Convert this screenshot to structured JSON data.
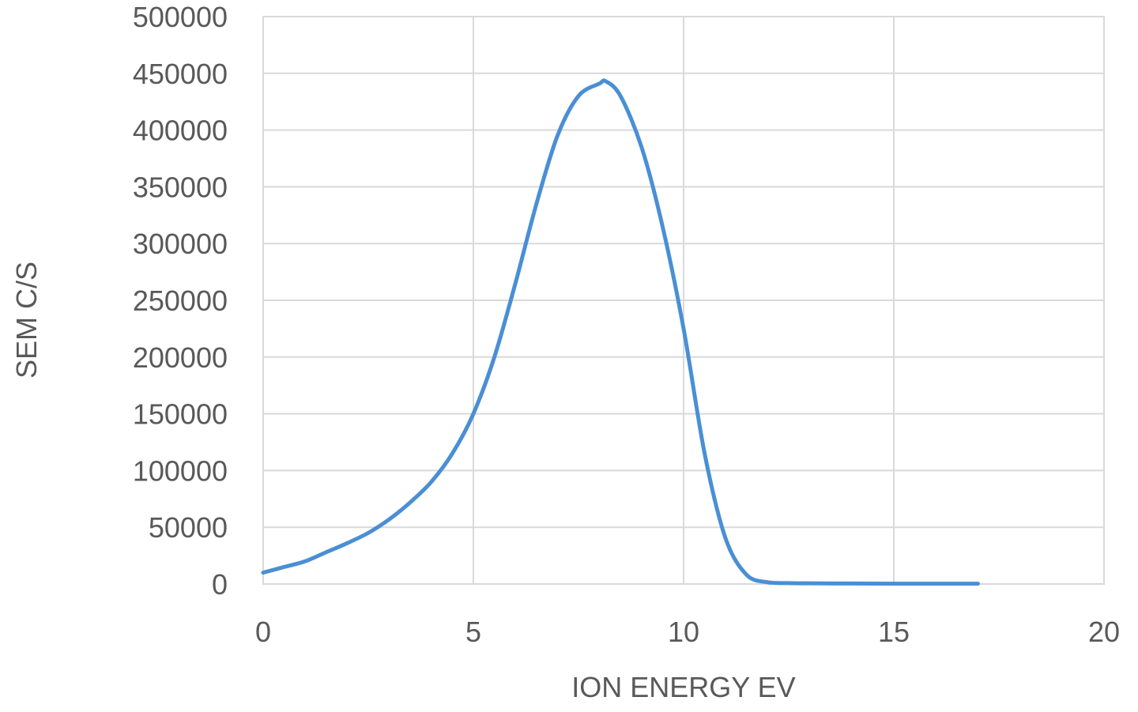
{
  "chart_data": {
    "type": "line",
    "title": "",
    "xlabel": "ION ENERGY EV",
    "ylabel": "SEM C/S",
    "xlim": [
      0,
      20
    ],
    "ylim": [
      0,
      500000
    ],
    "x_ticks": [
      0,
      5,
      10,
      15,
      20
    ],
    "y_ticks": [
      0,
      50000,
      100000,
      150000,
      200000,
      250000,
      300000,
      350000,
      400000,
      450000,
      500000
    ],
    "x_tick_labels": [
      "0",
      "5",
      "10",
      "15",
      "20"
    ],
    "y_tick_labels": [
      "0",
      "50000",
      "100000",
      "150000",
      "200000",
      "250000",
      "300000",
      "350000",
      "400000",
      "450000",
      "500000"
    ],
    "grid": true,
    "legend": "none",
    "line_color": "#4a8fd4",
    "series": [
      {
        "x": [
          0,
          0.5,
          1,
          1.5,
          2,
          2.5,
          3,
          3.5,
          4,
          4.5,
          5,
          5.5,
          6,
          6.5,
          7,
          7.5,
          8,
          8.15,
          8.5,
          9,
          9.5,
          10,
          10.5,
          11,
          11.5,
          12,
          12.5,
          13,
          14,
          15,
          16,
          17
        ],
        "y": [
          10000,
          15000,
          20000,
          28000,
          36000,
          45000,
          57000,
          72000,
          90000,
          115000,
          150000,
          200000,
          265000,
          335000,
          395000,
          430000,
          441000,
          443000,
          430000,
          385000,
          315000,
          225000,
          115000,
          40000,
          8000,
          1500,
          800,
          600,
          400,
          300,
          300,
          300
        ]
      }
    ]
  }
}
